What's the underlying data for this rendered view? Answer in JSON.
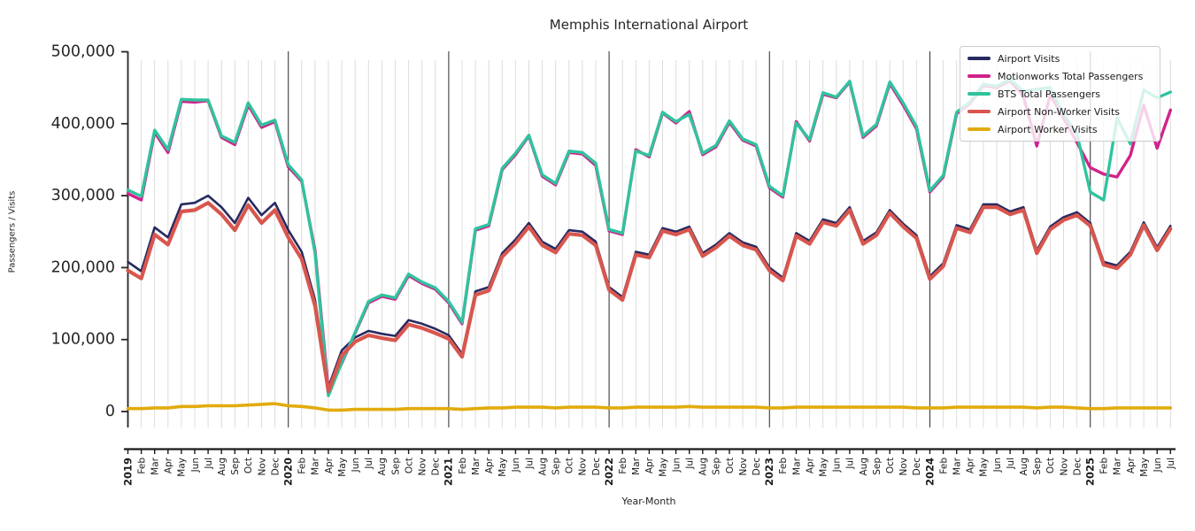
{
  "chart_data": {
    "type": "line",
    "title": "Memphis International Airport",
    "xlabel": "Year-Month",
    "ylabel": "Passengers / Visits",
    "ylim": [
      0,
      500000
    ],
    "y_ticks": [
      0,
      100000,
      200000,
      300000,
      400000,
      500000
    ],
    "y_tick_labels": [
      "0",
      "100,000",
      "200,000",
      "300,000",
      "400,000",
      "500,000"
    ],
    "grid": "vertical gridline per month; January gridlines darker",
    "legend_position": "upper right",
    "x_range": "2019-01 to 2025-07",
    "x_tick_labels": [
      "2019",
      "Feb",
      "Mar",
      "Apr",
      "May",
      "Jun",
      "Jul",
      "Aug",
      "Sep",
      "Oct",
      "Nov",
      "Dec",
      "2020",
      "Feb",
      "Mar",
      "Apr",
      "May",
      "Jun",
      "Jul",
      "Aug",
      "Sep",
      "Oct",
      "Nov",
      "Dec",
      "2021",
      "Feb",
      "Mar",
      "Apr",
      "May",
      "Jun",
      "Jul",
      "Aug",
      "Sep",
      "Oct",
      "Nov",
      "Dec",
      "2022",
      "Feb",
      "Mar",
      "Apr",
      "May",
      "Jun",
      "Jul",
      "Aug",
      "Sep",
      "Oct",
      "Nov",
      "Dec",
      "2023",
      "Feb",
      "Mar",
      "Apr",
      "May",
      "Jun",
      "Jul",
      "Aug",
      "Sep",
      "Oct",
      "Nov",
      "Dec",
      "2024",
      "Feb",
      "Mar",
      "Apr",
      "May",
      "Jun",
      "Jul",
      "Aug",
      "Sep",
      "Oct",
      "Nov",
      "Dec",
      "2025",
      "Feb",
      "Mar",
      "Apr",
      "May",
      "Jun",
      "Jul"
    ],
    "series": [
      {
        "name": "Airport Visits",
        "color": "#272a60",
        "line_width": 2.6,
        "values": [
          208000,
          195000,
          256000,
          242000,
          288000,
          290000,
          300000,
          284000,
          262000,
          297000,
          273000,
          290000,
          252000,
          222000,
          155000,
          34000,
          85000,
          103000,
          112000,
          108000,
          105000,
          127000,
          122000,
          115000,
          106000,
          80000,
          167000,
          173000,
          220000,
          239000,
          262000,
          236000,
          226000,
          252000,
          250000,
          236000,
          173000,
          159000,
          222000,
          218000,
          255000,
          250000,
          257000,
          220000,
          232000,
          248000,
          235000,
          229000,
          200000,
          186000,
          248000,
          237000,
          267000,
          262000,
          284000,
          237000,
          249000,
          280000,
          261000,
          245000,
          188000,
          206000,
          259000,
          253000,
          288000,
          288000,
          278000,
          284000,
          224000,
          257000,
          270000,
          277000,
          262000,
          208000,
          203000,
          222000,
          263000,
          228000,
          258000
        ]
      },
      {
        "name": "Motionworks Total Passengers",
        "color": "#d1228c",
        "line_width": 3.4,
        "values": [
          303000,
          294000,
          388000,
          360000,
          431000,
          430000,
          432000,
          381000,
          371000,
          426000,
          395000,
          403000,
          340000,
          320000,
          224000,
          30000,
          67000,
          109000,
          151000,
          160000,
          156000,
          189000,
          178000,
          170000,
          151000,
          122000,
          252000,
          258000,
          336000,
          357000,
          383000,
          327000,
          315000,
          360000,
          358000,
          342000,
          251000,
          246000,
          364000,
          354000,
          415000,
          401000,
          417000,
          357000,
          368000,
          402000,
          377000,
          369000,
          311000,
          298000,
          403000,
          376000,
          441000,
          436000,
          458000,
          381000,
          397000,
          456000,
          426000,
          393000,
          305000,
          326000,
          414000,
          428000,
          453000,
          450000,
          460000,
          438000,
          369000,
          440000,
          408000,
          374000,
          339000,
          330000,
          326000,
          356000,
          426000,
          366000,
          419000
        ]
      },
      {
        "name": "BTS Total Passengers",
        "color": "#30c39e",
        "line_width": 3.4,
        "values": [
          308000,
          299000,
          391000,
          364000,
          434000,
          433000,
          433000,
          383000,
          374000,
          429000,
          398000,
          405000,
          343000,
          322000,
          220000,
          22000,
          68000,
          110000,
          153000,
          162000,
          158000,
          191000,
          180000,
          172000,
          153000,
          124000,
          254000,
          260000,
          338000,
          359000,
          384000,
          329000,
          317000,
          362000,
          360000,
          345000,
          253000,
          248000,
          362000,
          356000,
          416000,
          403000,
          413000,
          359000,
          370000,
          404000,
          379000,
          371000,
          313000,
          300000,
          401000,
          378000,
          443000,
          437000,
          459000,
          383000,
          399000,
          458000,
          429000,
          396000,
          307000,
          328000,
          416000,
          430000,
          455000,
          452000,
          462000,
          445000,
          448000,
          450000,
          413000,
          386000,
          305000,
          294000,
          408000,
          372000,
          447000,
          436000,
          444000
        ]
      },
      {
        "name": "Airport Non-Worker Visits",
        "color": "#d8564e",
        "line_width": 4.2,
        "values": [
          196000,
          185000,
          246000,
          232000,
          278000,
          280000,
          290000,
          274000,
          252000,
          287000,
          262000,
          280000,
          242000,
          212000,
          147000,
          28000,
          78000,
          97000,
          106000,
          102000,
          99000,
          121000,
          116000,
          109000,
          101000,
          76000,
          162000,
          168000,
          215000,
          234000,
          257000,
          231000,
          221000,
          247000,
          245000,
          231000,
          169000,
          155000,
          218000,
          214000,
          251000,
          246000,
          253000,
          216000,
          228000,
          244000,
          231000,
          225000,
          196000,
          182000,
          244000,
          233000,
          263000,
          258000,
          280000,
          233000,
          245000,
          276000,
          257000,
          241000,
          184000,
          202000,
          255000,
          249000,
          284000,
          284000,
          274000,
          280000,
          220000,
          253000,
          266000,
          273000,
          258000,
          204000,
          199000,
          218000,
          259000,
          224000,
          254000
        ]
      },
      {
        "name": "Airport Worker Visits",
        "color": "#e2ab0d",
        "line_width": 3.6,
        "values": [
          4000,
          4000,
          5000,
          5000,
          7000,
          7000,
          8000,
          8000,
          8000,
          9000,
          10000,
          11000,
          8000,
          7000,
          5000,
          2000,
          2000,
          3000,
          3000,
          3000,
          3000,
          4000,
          4000,
          4000,
          4000,
          3000,
          4000,
          5000,
          5000,
          6000,
          6000,
          6000,
          5000,
          6000,
          6000,
          6000,
          5000,
          5000,
          6000,
          6000,
          6000,
          6000,
          7000,
          6000,
          6000,
          6000,
          6000,
          6000,
          5000,
          5000,
          6000,
          6000,
          6000,
          6000,
          6000,
          6000,
          6000,
          6000,
          6000,
          5000,
          5000,
          5000,
          6000,
          6000,
          6000,
          6000,
          6000,
          6000,
          5000,
          6000,
          6000,
          5000,
          4000,
          4000,
          5000,
          5000,
          5000,
          5000,
          5000
        ]
      }
    ]
  }
}
